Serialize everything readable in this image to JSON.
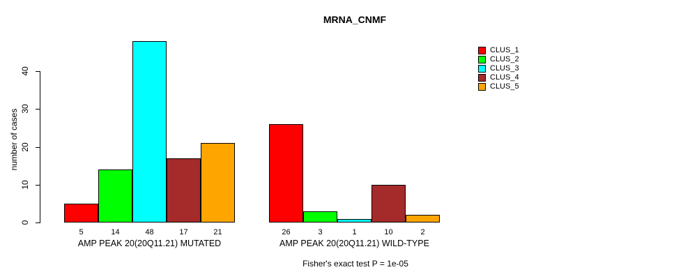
{
  "chart_data": {
    "type": "bar",
    "title": "MRNA_CNMF",
    "ylabel": "number of cases",
    "xlabel": "",
    "yticks": [
      0,
      10,
      20,
      30,
      40
    ],
    "ylim": [
      0,
      48
    ],
    "grid": false,
    "legend_position": "right-outside",
    "background_color": "#FFFFFF",
    "bar_border_color": "#000000",
    "series": [
      {
        "name": "CLUS_1",
        "color": "#FF0000"
      },
      {
        "name": "CLUS_2",
        "color": "#00FF00"
      },
      {
        "name": "CLUS_3",
        "color": "#00FFFF"
      },
      {
        "name": "CLUS_4",
        "color": "#A52A2A"
      },
      {
        "name": "CLUS_5",
        "color": "#FFA500"
      }
    ],
    "groups": [
      {
        "label": "AMP PEAK 20(20Q11.21) MUTATED",
        "values": [
          5,
          14,
          48,
          17,
          21
        ]
      },
      {
        "label": "AMP PEAK 20(20Q11.21) WILD-TYPE",
        "values": [
          26,
          3,
          1,
          10,
          2
        ]
      }
    ],
    "annotation": "Fisher's exact test P = 1e-05"
  }
}
